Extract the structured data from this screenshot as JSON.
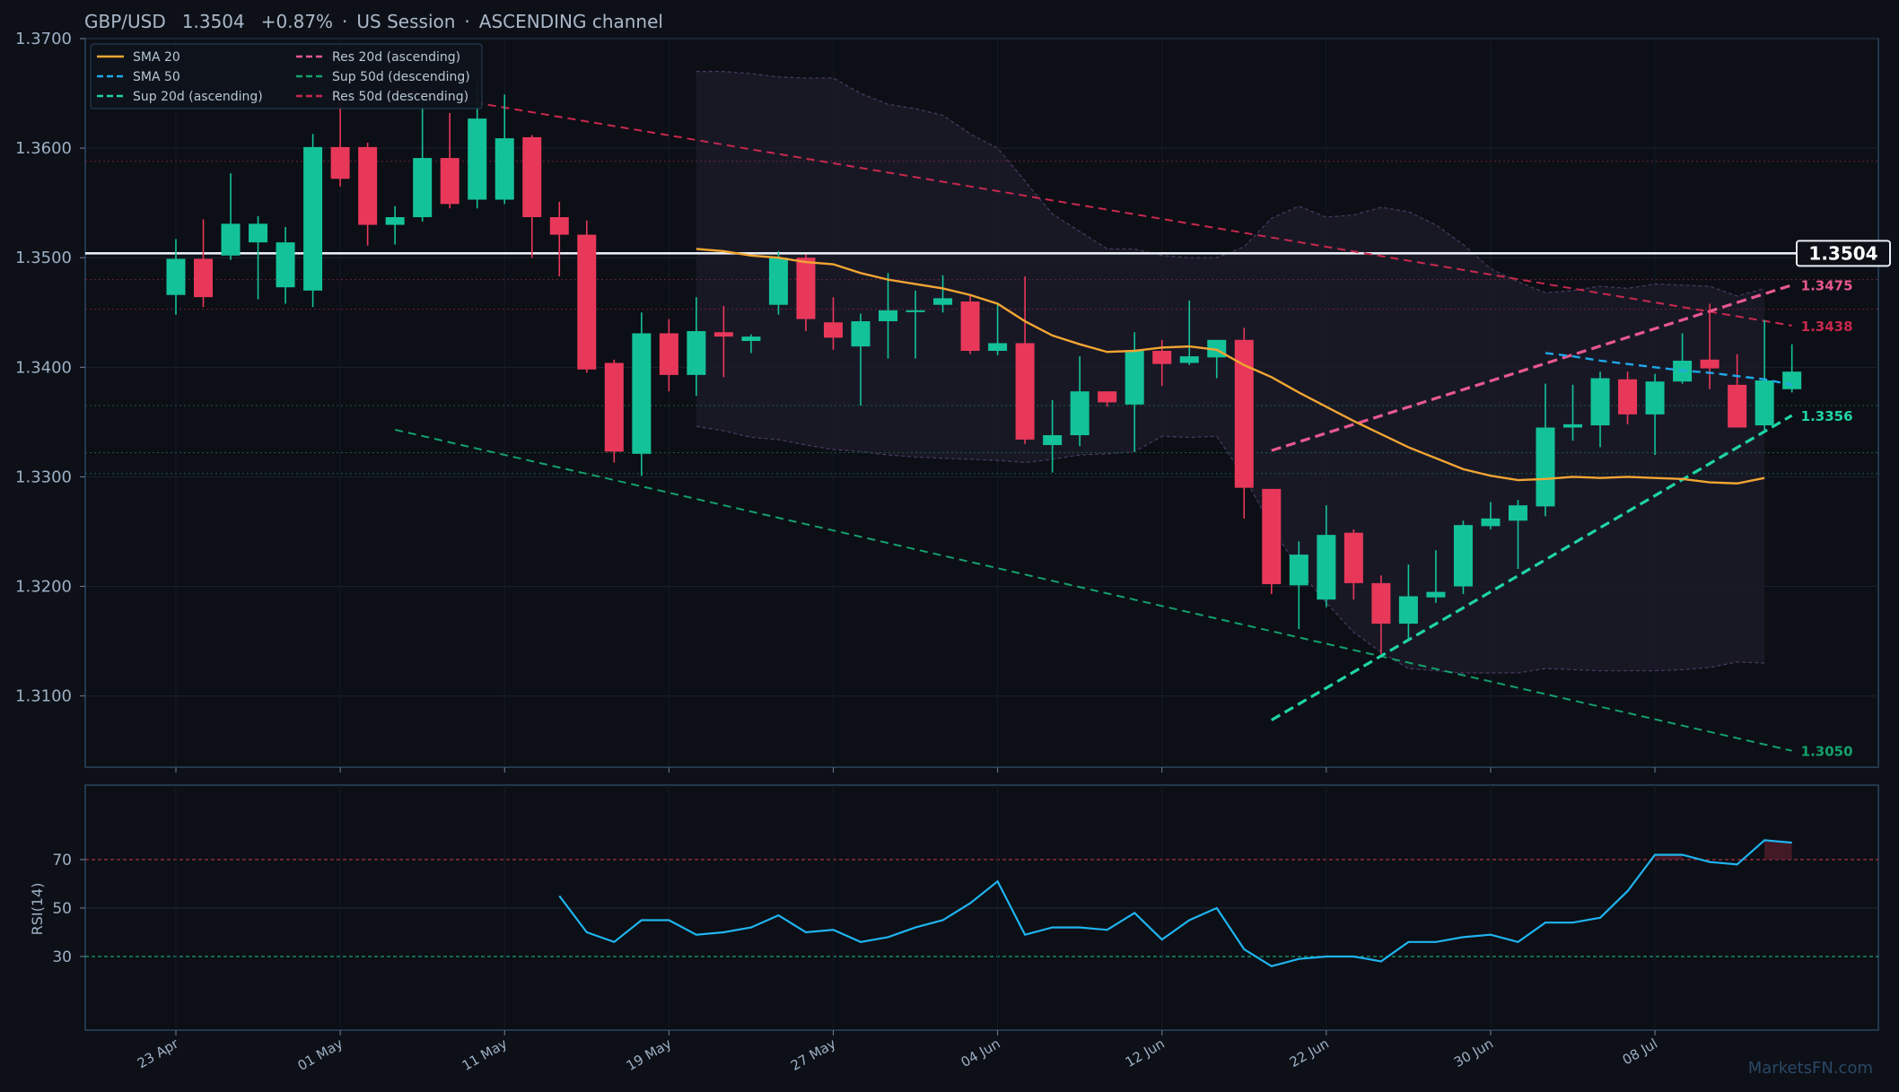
{
  "header": {
    "symbol": "GBP/USD",
    "price": "1.3504",
    "change": "+0.87%",
    "session": "US Session",
    "channel": "ASCENDING channel",
    "separator": "·"
  },
  "watermark": "MarketsFN.com",
  "colors": {
    "background": "#0d1017",
    "panel_border": "#2a4560",
    "up": "#14c29a",
    "down": "#e8385a",
    "sma20": "#f2a533",
    "sma50": "#1fa8e8",
    "res_asc": "#e8588f",
    "sup_asc": "#1fd4a6",
    "sup_desc": "#14a06c",
    "res_desc": "#c8284e",
    "rsi": "#1fb4f0",
    "text": "#9db0c5"
  },
  "legend": [
    {
      "label": "SMA 20",
      "color": "#f2a533",
      "dash": false
    },
    {
      "label": "Res 20d (ascending)",
      "color": "#e8588f",
      "dash": true
    },
    {
      "label": "SMA 50",
      "color": "#1fa8e8",
      "dash": true
    },
    {
      "label": "Sup 50d (descending)",
      "color": "#14a06c",
      "dash": true
    },
    {
      "label": "Sup 20d (ascending)",
      "color": "#1fd4a6",
      "dash": true
    },
    {
      "label": "Res 50d (descending)",
      "color": "#c8284e",
      "dash": true
    }
  ],
  "chart_data": [
    {
      "type": "candlestick",
      "title": "GBP/USD 1.3504 +0.87% · US Session · ASCENDING channel",
      "ylim": [
        1.3035,
        1.37
      ],
      "yticks": [
        "1.3100",
        "1.3200",
        "1.3300",
        "1.3400",
        "1.3500",
        "1.3600",
        "1.3700"
      ],
      "xticks": [
        {
          "label": "23 Apr",
          "i": 0
        },
        {
          "label": "01 May",
          "i": 6
        },
        {
          "label": "11 May",
          "i": 12
        },
        {
          "label": "19 May",
          "i": 18
        },
        {
          "label": "27 May",
          "i": 24
        },
        {
          "label": "04 Jun",
          "i": 30
        },
        {
          "label": "12 Jun",
          "i": 36
        },
        {
          "label": "22 Jun",
          "i": 42
        },
        {
          "label": "30 Jun",
          "i": 48
        },
        {
          "label": "08 Jul",
          "i": 54
        }
      ],
      "candles": [
        [
          1.3466,
          1.3517,
          1.3448,
          1.3499
        ],
        [
          1.3499,
          1.3535,
          1.3455,
          1.3464
        ],
        [
          1.3502,
          1.3577,
          1.3498,
          1.3531
        ],
        [
          1.3514,
          1.3538,
          1.3462,
          1.3531
        ],
        [
          1.3473,
          1.3528,
          1.3458,
          1.3514
        ],
        [
          1.347,
          1.3613,
          1.3455,
          1.3601
        ],
        [
          1.3601,
          1.365,
          1.3565,
          1.3572
        ],
        [
          1.3601,
          1.3605,
          1.3511,
          1.353
        ],
        [
          1.353,
          1.3547,
          1.3512,
          1.3537
        ],
        [
          1.3537,
          1.3648,
          1.3533,
          1.3591
        ],
        [
          1.3591,
          1.3632,
          1.3545,
          1.3549
        ],
        [
          1.3553,
          1.366,
          1.3545,
          1.3627
        ],
        [
          1.3553,
          1.3649,
          1.3549,
          1.3609
        ],
        [
          1.361,
          1.3612,
          1.35,
          1.3537
        ],
        [
          1.3537,
          1.3551,
          1.3483,
          1.3521
        ],
        [
          1.3521,
          1.3534,
          1.3395,
          1.3398
        ],
        [
          1.3404,
          1.3407,
          1.3313,
          1.3323
        ],
        [
          1.3321,
          1.345,
          1.3301,
          1.3431
        ],
        [
          1.3431,
          1.3444,
          1.3378,
          1.3393
        ],
        [
          1.3393,
          1.3464,
          1.3374,
          1.3433
        ],
        [
          1.3432,
          1.3456,
          1.3391,
          1.3428
        ],
        [
          1.3424,
          1.343,
          1.3413,
          1.3428
        ],
        [
          1.3457,
          1.3506,
          1.3448,
          1.35
        ],
        [
          1.35,
          1.3503,
          1.3433,
          1.3444
        ],
        [
          1.3441,
          1.3464,
          1.3416,
          1.3427
        ],
        [
          1.3419,
          1.3449,
          1.3365,
          1.3442
        ],
        [
          1.3442,
          1.3486,
          1.3408,
          1.3452
        ],
        [
          1.3452,
          1.347,
          1.3408,
          1.3452
        ],
        [
          1.3457,
          1.3484,
          1.345,
          1.3463
        ],
        [
          1.346,
          1.3465,
          1.3412,
          1.3415
        ],
        [
          1.3415,
          1.3459,
          1.3411,
          1.3422
        ],
        [
          1.3422,
          1.3483,
          1.333,
          1.3334
        ],
        [
          1.3329,
          1.337,
          1.3304,
          1.3338
        ],
        [
          1.3338,
          1.341,
          1.3328,
          1.3378
        ],
        [
          1.3378,
          1.3378,
          1.3364,
          1.3368
        ],
        [
          1.3366,
          1.3432,
          1.3323,
          1.3415
        ],
        [
          1.3415,
          1.3425,
          1.3383,
          1.3403
        ],
        [
          1.3404,
          1.3461,
          1.3402,
          1.341
        ],
        [
          1.3409,
          1.3425,
          1.339,
          1.3425
        ],
        [
          1.3425,
          1.3436,
          1.3262,
          1.329
        ],
        [
          1.3289,
          1.3289,
          1.3193,
          1.3202
        ],
        [
          1.3201,
          1.3241,
          1.3161,
          1.3229
        ],
        [
          1.3188,
          1.3274,
          1.3181,
          1.3247
        ],
        [
          1.3249,
          1.3252,
          1.3188,
          1.3203
        ],
        [
          1.3203,
          1.321,
          1.3138,
          1.3166
        ],
        [
          1.3166,
          1.322,
          1.3151,
          1.3191
        ],
        [
          1.319,
          1.3233,
          1.3185,
          1.3195
        ],
        [
          1.32,
          1.326,
          1.3193,
          1.3256
        ],
        [
          1.3255,
          1.3277,
          1.3252,
          1.3262
        ],
        [
          1.326,
          1.3279,
          1.3216,
          1.3274
        ],
        [
          1.3273,
          1.3385,
          1.3264,
          1.3345
        ],
        [
          1.3345,
          1.3384,
          1.3333,
          1.3348
        ],
        [
          1.3347,
          1.3396,
          1.3327,
          1.339
        ],
        [
          1.3389,
          1.3396,
          1.3348,
          1.3357
        ],
        [
          1.3357,
          1.3394,
          1.332,
          1.3387
        ],
        [
          1.3387,
          1.3431,
          1.3385,
          1.3406
        ],
        [
          1.3407,
          1.3458,
          1.338,
          1.3399
        ],
        [
          1.3384,
          1.3412,
          1.3345,
          1.3345
        ],
        [
          1.3347,
          1.3443,
          1.3341,
          1.3388
        ],
        [
          1.338,
          1.3421,
          1.3377,
          1.3396
        ]
      ],
      "sma20": {
        "start": 19,
        "values": [
          1.3508,
          1.3506,
          1.3502,
          1.35,
          1.3496,
          1.3494,
          1.3486,
          1.348,
          1.3476,
          1.3472,
          1.3466,
          1.3458,
          1.3442,
          1.3429,
          1.3421,
          1.3414,
          1.3415,
          1.3418,
          1.3419,
          1.3416,
          1.3402,
          1.3391,
          1.3377,
          1.3364,
          1.3351,
          1.3339,
          1.3327,
          1.3317,
          1.3307,
          1.3301,
          1.3297,
          1.3298,
          1.33,
          1.3299,
          1.33,
          1.3299,
          1.3298,
          1.3295,
          1.3294,
          1.3299
        ]
      },
      "sma50": {
        "start": 50,
        "values": [
          1.3413,
          1.341,
          1.3406,
          1.3403,
          1.34,
          1.3397,
          1.3395,
          1.3392,
          1.3389,
          1.3384
        ]
      },
      "bollinger": {
        "start": 19,
        "upper": [
          1.367,
          1.367,
          1.3668,
          1.3665,
          1.3664,
          1.3664,
          1.365,
          1.364,
          1.3636,
          1.363,
          1.3613,
          1.36,
          1.357,
          1.354,
          1.3524,
          1.3508,
          1.3508,
          1.3502,
          1.35,
          1.35,
          1.351,
          1.3536,
          1.3547,
          1.3537,
          1.3539,
          1.3546,
          1.3542,
          1.353,
          1.3512,
          1.349,
          1.3478,
          1.3468,
          1.347,
          1.3474,
          1.3472,
          1.3476,
          1.3475,
          1.3474,
          1.3465,
          1.3472
        ],
        "lower": [
          1.3346,
          1.3342,
          1.3336,
          1.3334,
          1.3329,
          1.3325,
          1.3323,
          1.332,
          1.3318,
          1.3317,
          1.3316,
          1.3315,
          1.3313,
          1.3316,
          1.332,
          1.3321,
          1.3323,
          1.3337,
          1.3336,
          1.3337,
          1.33,
          1.3255,
          1.3215,
          1.3185,
          1.3158,
          1.314,
          1.3125,
          1.3123,
          1.3121,
          1.3121,
          1.3121,
          1.3125,
          1.3124,
          1.3123,
          1.3123,
          1.3123,
          1.3124,
          1.3126,
          1.3131,
          1.313
        ]
      },
      "lines": [
        {
          "name": "Res 50d (descending)",
          "from": [
            8,
            1.3654
          ],
          "to": [
            59,
            1.3438
          ],
          "label": "1.3438"
        },
        {
          "name": "Sup 50d (descending)",
          "from": [
            8,
            1.3343
          ],
          "to": [
            59,
            1.305
          ],
          "label": "1.3050"
        },
        {
          "name": "Res 20d (ascending)",
          "from": [
            40,
            1.3324
          ],
          "to": [
            59,
            1.3475
          ],
          "label": "1.3475"
        },
        {
          "name": "Sup 20d (ascending)",
          "from": [
            40,
            1.3078
          ],
          "to": [
            59,
            1.3356
          ],
          "label": "1.3356"
        }
      ],
      "hlines": [
        {
          "price": 1.3504,
          "label": "1.3504",
          "style": "price"
        },
        {
          "price": 1.3588,
          "style": "res"
        },
        {
          "price": 1.348,
          "style": "res"
        },
        {
          "price": 1.3453,
          "style": "res"
        },
        {
          "price": 1.3365,
          "style": "sup"
        },
        {
          "price": 1.3322,
          "style": "sup"
        },
        {
          "price": 1.3303,
          "style": "sup"
        }
      ]
    },
    {
      "type": "line",
      "ylabel": "RSI(14)",
      "ylim": [
        0,
        100
      ],
      "yticks": [
        "30",
        "50",
        "70"
      ],
      "levels": [
        70,
        30
      ],
      "start": 14,
      "values": [
        55,
        40,
        36,
        45,
        45,
        39,
        40,
        42,
        47,
        40,
        41,
        36,
        38,
        42,
        45,
        52,
        61,
        39,
        42,
        42,
        41,
        48,
        37,
        45,
        50,
        33,
        26,
        29,
        30,
        30,
        28,
        36,
        36,
        38,
        39,
        36,
        44,
        44,
        46,
        57,
        72,
        72,
        69,
        68,
        78,
        77
      ]
    }
  ]
}
